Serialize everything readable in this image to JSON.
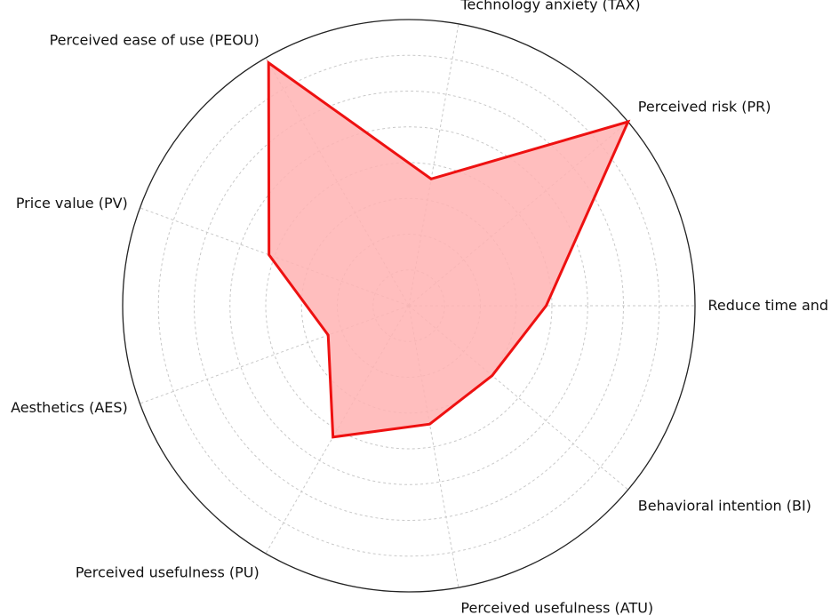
{
  "chart_data": {
    "type": "radar",
    "title": "",
    "axes": [
      "Technology anxiety (TAX)",
      "Perceived risk (PR)",
      "Reduce time and errors (RTE)",
      "Behavioral intention (BI)",
      "Perceived usefulness (ATU)",
      "Perceived usefulness (PU)",
      "Aesthetics (AES)",
      "Price value (PV)",
      "Perceived ease of use (PEOU)"
    ],
    "series": [
      {
        "values": [
          0.45,
          1.0,
          0.48,
          0.38,
          0.42,
          0.53,
          0.3,
          0.52,
          0.98
        ]
      }
    ],
    "rlim": [
      0,
      1
    ],
    "grid": true,
    "tick_labels": false,
    "line_color": "#ee1111",
    "fill_color": "#ffb3b3"
  }
}
